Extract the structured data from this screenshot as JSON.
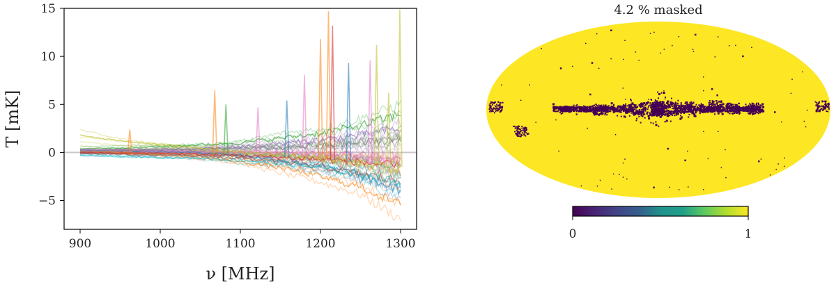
{
  "chart_data": [
    {
      "type": "line",
      "title": "",
      "xlabel": "ν [MHz]",
      "ylabel": "T [mK]",
      "xlim": [
        880,
        1320
      ],
      "ylim": [
        -8,
        15
      ],
      "xticks": [
        900,
        1000,
        1100,
        1200,
        1300
      ],
      "yticks": [
        -5,
        0,
        5,
        10,
        15
      ],
      "x_range": [
        900,
        1300
      ],
      "reference_line_y": 0,
      "n_series_visible": "many (hundreds of faint overlapping lines)",
      "series": [
        {
          "color": "#1f77b4",
          "x": [
            900,
            950,
            1000,
            1050,
            1100,
            1150,
            1200,
            1250,
            1300
          ],
          "values": [
            0.3,
            0.2,
            0.1,
            0.0,
            -0.3,
            -0.8,
            -1.4,
            -2.4,
            -4.0
          ]
        },
        {
          "color": "#ff7f0e",
          "x": [
            900,
            950,
            1000,
            1050,
            1100,
            1150,
            1200,
            1250,
            1300
          ],
          "values": [
            0.1,
            0.0,
            -0.2,
            -0.5,
            -1.0,
            -1.6,
            -2.5,
            -3.6,
            -5.5
          ]
        },
        {
          "color": "#2ca02c",
          "x": [
            900,
            950,
            1000,
            1050,
            1100,
            1150,
            1200,
            1250,
            1300
          ],
          "values": [
            0.4,
            0.5,
            0.6,
            0.8,
            1.0,
            1.5,
            2.0,
            2.8,
            4.0
          ]
        },
        {
          "color": "#d62728",
          "x": [
            900,
            950,
            1000,
            1050,
            1100,
            1150,
            1200,
            1250,
            1300
          ],
          "values": [
            0.0,
            -0.1,
            -0.1,
            -0.2,
            -0.3,
            -0.5,
            -0.7,
            -1.0,
            -1.5
          ]
        },
        {
          "color": "#9467bd",
          "x": [
            900,
            950,
            1000,
            1050,
            1100,
            1150,
            1200,
            1250,
            1300
          ],
          "values": [
            0.2,
            0.3,
            0.3,
            0.4,
            0.6,
            0.9,
            1.3,
            1.8,
            2.5
          ]
        },
        {
          "color": "#8c564b",
          "x": [
            900,
            950,
            1000,
            1050,
            1100,
            1150,
            1200,
            1250,
            1300
          ],
          "values": [
            -0.1,
            -0.2,
            -0.3,
            -0.4,
            -0.6,
            -1.0,
            -1.5,
            -2.2,
            -3.0
          ]
        },
        {
          "color": "#e377c2",
          "x": [
            900,
            950,
            1000,
            1050,
            1100,
            1150,
            1200,
            1250,
            1300
          ],
          "values": [
            0.3,
            0.2,
            0.2,
            0.1,
            0.1,
            0.0,
            -0.2,
            -0.4,
            -0.8
          ]
        },
        {
          "color": "#7f7f7f",
          "x": [
            900,
            950,
            1000,
            1050,
            1100,
            1150,
            1200,
            1250,
            1300
          ],
          "values": [
            0.1,
            0.2,
            0.3,
            0.3,
            0.4,
            0.5,
            0.7,
            1.0,
            1.4
          ]
        },
        {
          "color": "#bcbd22",
          "x": [
            900,
            950,
            1000,
            1050,
            1100,
            1150,
            1200,
            1250,
            1300
          ],
          "values": [
            1.8,
            1.2,
            0.8,
            0.4,
            0.0,
            -0.3,
            -0.6,
            -1.1,
            -2.0
          ]
        },
        {
          "color": "#17becf",
          "x": [
            900,
            950,
            1000,
            1050,
            1100,
            1150,
            1200,
            1250,
            1300
          ],
          "values": [
            -0.3,
            -0.4,
            -0.5,
            -0.6,
            -0.8,
            -1.1,
            -1.6,
            -2.3,
            -3.2
          ]
        }
      ],
      "spikes": [
        {
          "x": 962,
          "value": 2.4,
          "color": "#ff7f0e"
        },
        {
          "x": 1068,
          "value": 6.5,
          "color": "#ff7f0e"
        },
        {
          "x": 1082,
          "value": 5.0,
          "color": "#2ca02c"
        },
        {
          "x": 1122,
          "value": 4.7,
          "color": "#e377c2"
        },
        {
          "x": 1158,
          "value": 5.4,
          "color": "#1f77b4"
        },
        {
          "x": 1180,
          "value": 8.1,
          "color": "#e377c2"
        },
        {
          "x": 1200,
          "value": 11.8,
          "color": "#ff7f0e"
        },
        {
          "x": 1210,
          "value": 14.7,
          "color": "#ff7f0e"
        },
        {
          "x": 1215,
          "value": 13.2,
          "color": "#d62728"
        },
        {
          "x": 1235,
          "value": 9.3,
          "color": "#1f77b4"
        },
        {
          "x": 1262,
          "value": 9.6,
          "color": "#e377c2"
        },
        {
          "x": 1270,
          "value": 11.2,
          "color": "#bcbd22"
        },
        {
          "x": 1285,
          "value": 6.2,
          "color": "#bcbd22"
        },
        {
          "x": 1299,
          "value": 14.9,
          "color": "#bcbd22"
        }
      ]
    },
    {
      "type": "heatmap",
      "title": "4.2 % masked",
      "projection": "mollweide",
      "colormap": "viridis",
      "masked_fraction_percent": 4.2,
      "dominant_value": 1,
      "colors": {
        "high": "#fde725",
        "low": "#440154",
        "mid": "#21918c"
      },
      "colorbar": {
        "min": 0,
        "max": 1,
        "ticks": [
          "0",
          "1"
        ]
      },
      "masked_regions": [
        {
          "lon": 0,
          "lat": 0,
          "description": "galactic plane core"
        },
        {
          "lon": 60,
          "lat": 0
        },
        {
          "lon": -30,
          "lat": 2
        },
        {
          "lon": -60,
          "lat": 3
        },
        {
          "lon": -78,
          "lat": 1
        },
        {
          "lon": -100,
          "lat": 1
        },
        {
          "lon": 170,
          "lat": 2
        },
        {
          "lon": -172,
          "lat": 3
        },
        {
          "lon": 148,
          "lat": -18
        }
      ]
    }
  ]
}
